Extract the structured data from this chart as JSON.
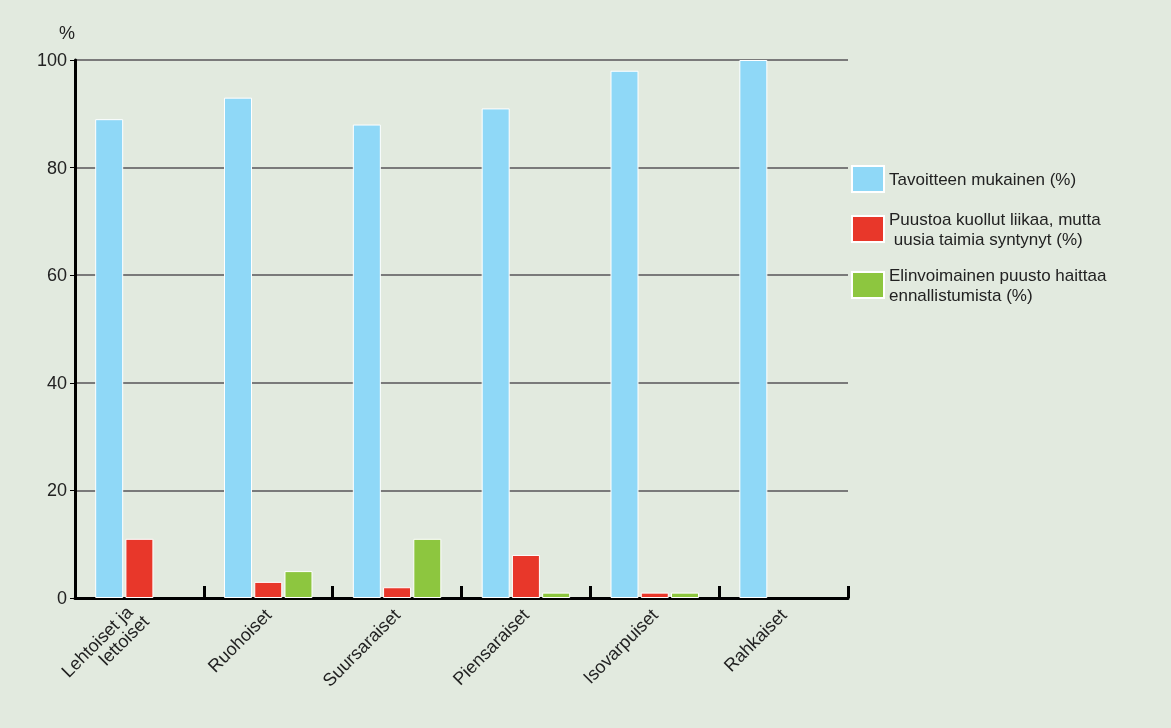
{
  "chart_data": {
    "type": "bar",
    "ylabel": "%",
    "categories": [
      "Lehtoiset ja lettoiset",
      "Ruohoiset",
      "Suursaraiset",
      "Piensaraiset",
      "Isovarpuiset",
      "Rahkaiset"
    ],
    "series": [
      {
        "name": "Tavoitteen mukainen (%)",
        "color": "#8fd8f7",
        "values": [
          89,
          93,
          88,
          91,
          98,
          100
        ]
      },
      {
        "name": "Puustoa kuollut liikaa, mutta uusia taimia syntynyt (%)",
        "color": "#e8372a",
        "values": [
          11,
          3,
          2,
          8,
          1,
          null
        ]
      },
      {
        "name": "Elinvoimainen puusto haittaa ennallistumista (%)",
        "color": "#8dc63f",
        "values": [
          null,
          5,
          11,
          1,
          1,
          null
        ]
      }
    ],
    "ylim": [
      0,
      100
    ],
    "yticks": [
      0,
      20,
      40,
      60,
      80,
      100
    ],
    "grid": "y",
    "legend": "right"
  }
}
